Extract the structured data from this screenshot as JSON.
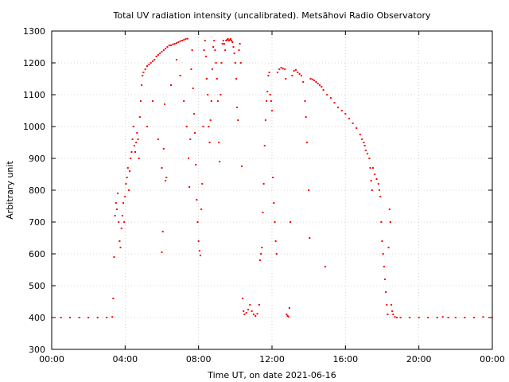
{
  "chart_data": {
    "type": "scatter",
    "title": "Total UV radiation intensity (uncalibrated). Metsähovi Radio Observatory",
    "xlabel": "Time UT, on date 2021-06-16",
    "ylabel": "Arbitrary unit",
    "xlim": [
      "00:00",
      "24:00"
    ],
    "ylim": [
      300,
      1300
    ],
    "grid": true,
    "legend": "none",
    "marker_color": "#ff0000",
    "x_ticks": [
      "00:00",
      "04:00",
      "08:00",
      "12:00",
      "16:00",
      "20:00",
      "00:00"
    ],
    "y_ticks": [
      300,
      400,
      500,
      600,
      700,
      800,
      900,
      1000,
      1100,
      1200,
      1300
    ],
    "x_unit": "hours UT",
    "series": [
      {
        "values": [
          [
            0.0,
            400
          ],
          [
            0.5,
            400
          ],
          [
            1.0,
            400
          ],
          [
            1.5,
            400
          ],
          [
            2.0,
            400
          ],
          [
            2.5,
            400
          ],
          [
            3.0,
            400
          ],
          [
            3.3,
            402
          ],
          [
            3.35,
            460
          ],
          [
            3.4,
            590
          ],
          [
            3.45,
            720
          ],
          [
            3.5,
            760
          ],
          [
            3.55,
            740
          ],
          [
            3.6,
            790
          ],
          [
            3.65,
            700
          ],
          [
            3.7,
            640
          ],
          [
            3.75,
            620
          ],
          [
            3.8,
            680
          ],
          [
            3.85,
            720
          ],
          [
            3.9,
            760
          ],
          [
            3.95,
            700
          ],
          [
            4.0,
            780
          ],
          [
            4.05,
            820
          ],
          [
            4.1,
            840
          ],
          [
            4.15,
            870
          ],
          [
            4.2,
            800
          ],
          [
            4.25,
            860
          ],
          [
            4.3,
            900
          ],
          [
            4.35,
            920
          ],
          [
            4.4,
            960
          ],
          [
            4.45,
            1000
          ],
          [
            4.5,
            940
          ],
          [
            4.55,
            920
          ],
          [
            4.6,
            950
          ],
          [
            4.65,
            980
          ],
          [
            4.7,
            960
          ],
          [
            4.75,
            900
          ],
          [
            4.8,
            1030
          ],
          [
            4.85,
            1080
          ],
          [
            4.9,
            1130
          ],
          [
            4.95,
            1160
          ],
          [
            5.0,
            1170
          ],
          [
            5.1,
            1180
          ],
          [
            5.2,
            1190
          ],
          [
            5.3,
            1195
          ],
          [
            5.4,
            1200
          ],
          [
            5.5,
            1205
          ],
          [
            5.6,
            1210
          ],
          [
            5.7,
            1220
          ],
          [
            5.8,
            1225
          ],
          [
            5.9,
            1230
          ],
          [
            6.0,
            1235
          ],
          [
            6.1,
            1240
          ],
          [
            6.2,
            1245
          ],
          [
            6.3,
            1250
          ],
          [
            6.4,
            1255
          ],
          [
            6.5,
            1255
          ],
          [
            6.6,
            1258
          ],
          [
            6.7,
            1260
          ],
          [
            6.8,
            1262
          ],
          [
            6.9,
            1265
          ],
          [
            7.0,
            1268
          ],
          [
            7.1,
            1270
          ],
          [
            7.2,
            1272
          ],
          [
            7.3,
            1275
          ],
          [
            7.4,
            1276
          ],
          [
            5.2,
            1000
          ],
          [
            5.5,
            1080
          ],
          [
            5.8,
            960
          ],
          [
            6.0,
            870
          ],
          [
            6.1,
            930
          ],
          [
            6.15,
            1070
          ],
          [
            6.05,
            670
          ],
          [
            6.0,
            605
          ],
          [
            6.2,
            830
          ],
          [
            6.25,
            840
          ],
          [
            6.5,
            1130
          ],
          [
            6.8,
            1210
          ],
          [
            7.0,
            1160
          ],
          [
            7.2,
            1080
          ],
          [
            7.35,
            1000
          ],
          [
            7.45,
            900
          ],
          [
            7.5,
            810
          ],
          [
            7.55,
            960
          ],
          [
            7.6,
            1180
          ],
          [
            7.65,
            1240
          ],
          [
            7.7,
            1120
          ],
          [
            7.75,
            1040
          ],
          [
            7.8,
            980
          ],
          [
            7.85,
            880
          ],
          [
            7.9,
            770
          ],
          [
            7.95,
            700
          ],
          [
            8.0,
            640
          ],
          [
            8.05,
            610
          ],
          [
            8.1,
            595
          ],
          [
            8.15,
            740
          ],
          [
            8.2,
            820
          ],
          [
            8.25,
            1000
          ],
          [
            8.3,
            1240
          ],
          [
            8.35,
            1270
          ],
          [
            8.4,
            1220
          ],
          [
            8.45,
            1150
          ],
          [
            8.5,
            1100
          ],
          [
            8.55,
            1000
          ],
          [
            8.6,
            950
          ],
          [
            8.65,
            1020
          ],
          [
            8.7,
            1080
          ],
          [
            8.75,
            1180
          ],
          [
            8.8,
            1250
          ],
          [
            8.85,
            1270
          ],
          [
            8.9,
            1240
          ],
          [
            8.95,
            1200
          ],
          [
            9.0,
            1150
          ],
          [
            9.05,
            1080
          ],
          [
            9.1,
            950
          ],
          [
            9.15,
            890
          ],
          [
            9.2,
            1100
          ],
          [
            9.25,
            1200
          ],
          [
            9.3,
            1260
          ],
          [
            9.35,
            1270
          ],
          [
            9.4,
            1260
          ],
          [
            9.45,
            1240
          ],
          [
            9.5,
            1270
          ],
          [
            9.55,
            1272
          ],
          [
            9.6,
            1275
          ],
          [
            9.65,
            1270
          ],
          [
            9.7,
            1272
          ],
          [
            9.75,
            1275
          ],
          [
            9.8,
            1270
          ],
          [
            9.85,
            1265
          ],
          [
            9.9,
            1250
          ],
          [
            9.95,
            1230
          ],
          [
            10.0,
            1200
          ],
          [
            10.05,
            1150
          ],
          [
            10.1,
            1060
          ],
          [
            10.15,
            1020
          ],
          [
            10.2,
            1240
          ],
          [
            10.25,
            1260
          ],
          [
            10.3,
            1200
          ],
          [
            10.35,
            875
          ],
          [
            10.4,
            460
          ],
          [
            10.45,
            420
          ],
          [
            10.5,
            410
          ],
          [
            10.6,
            415
          ],
          [
            10.7,
            425
          ],
          [
            10.8,
            440
          ],
          [
            10.9,
            420
          ],
          [
            11.0,
            410
          ],
          [
            11.1,
            405
          ],
          [
            11.2,
            412
          ],
          [
            11.3,
            440
          ],
          [
            11.35,
            580
          ],
          [
            11.4,
            600
          ],
          [
            11.45,
            620
          ],
          [
            11.5,
            730
          ],
          [
            11.55,
            820
          ],
          [
            11.6,
            940
          ],
          [
            11.65,
            1020
          ],
          [
            11.7,
            1080
          ],
          [
            11.75,
            1110
          ],
          [
            11.8,
            1160
          ],
          [
            11.85,
            1170
          ],
          [
            11.9,
            1100
          ],
          [
            11.95,
            1080
          ],
          [
            12.0,
            1050
          ],
          [
            12.05,
            840
          ],
          [
            12.1,
            760
          ],
          [
            12.15,
            700
          ],
          [
            12.2,
            640
          ],
          [
            12.25,
            600
          ],
          [
            12.3,
            1170
          ],
          [
            12.4,
            1180
          ],
          [
            12.5,
            1185
          ],
          [
            12.6,
            1182
          ],
          [
            12.7,
            1180
          ],
          [
            12.75,
            1150
          ],
          [
            12.8,
            410
          ],
          [
            12.85,
            405
          ],
          [
            12.9,
            402
          ],
          [
            12.95,
            430
          ],
          [
            13.0,
            700
          ],
          [
            13.1,
            1160
          ],
          [
            13.2,
            1175
          ],
          [
            13.3,
            1178
          ],
          [
            13.4,
            1170
          ],
          [
            13.5,
            1165
          ],
          [
            13.6,
            1160
          ],
          [
            13.7,
            1140
          ],
          [
            13.8,
            1080
          ],
          [
            13.85,
            1030
          ],
          [
            13.9,
            950
          ],
          [
            14.0,
            800
          ],
          [
            14.05,
            650
          ],
          [
            14.1,
            1150
          ],
          [
            14.2,
            1148
          ],
          [
            14.3,
            1145
          ],
          [
            14.4,
            1140
          ],
          [
            14.5,
            1135
          ],
          [
            14.6,
            1130
          ],
          [
            14.7,
            1125
          ],
          [
            14.8,
            1115
          ],
          [
            14.9,
            560
          ],
          [
            15.0,
            1100
          ],
          [
            15.2,
            1090
          ],
          [
            15.4,
            1075
          ],
          [
            15.6,
            1060
          ],
          [
            15.8,
            1050
          ],
          [
            16.0,
            1040
          ],
          [
            16.2,
            1025
          ],
          [
            16.4,
            1010
          ],
          [
            16.6,
            995
          ],
          [
            16.8,
            975
          ],
          [
            16.9,
            960
          ],
          [
            17.0,
            950
          ],
          [
            17.05,
            940
          ],
          [
            17.1,
            925
          ],
          [
            17.2,
            915
          ],
          [
            17.3,
            900
          ],
          [
            17.35,
            870
          ],
          [
            17.4,
            830
          ],
          [
            17.45,
            800
          ],
          [
            17.5,
            870
          ],
          [
            17.6,
            850
          ],
          [
            17.7,
            835
          ],
          [
            17.8,
            820
          ],
          [
            17.85,
            800
          ],
          [
            17.9,
            780
          ],
          [
            17.95,
            700
          ],
          [
            18.0,
            640
          ],
          [
            18.05,
            600
          ],
          [
            18.1,
            560
          ],
          [
            18.15,
            520
          ],
          [
            18.2,
            480
          ],
          [
            18.25,
            440
          ],
          [
            18.3,
            410
          ],
          [
            18.35,
            620
          ],
          [
            18.4,
            740
          ],
          [
            18.45,
            700
          ],
          [
            18.5,
            440
          ],
          [
            18.55,
            420
          ],
          [
            18.6,
            410
          ],
          [
            18.7,
            402
          ],
          [
            18.8,
            400
          ],
          [
            19.0,
            400
          ],
          [
            19.5,
            400
          ],
          [
            20.0,
            400
          ],
          [
            20.5,
            400
          ],
          [
            21.0,
            400
          ],
          [
            21.3,
            402
          ],
          [
            21.6,
            400
          ],
          [
            22.0,
            400
          ],
          [
            22.5,
            400
          ],
          [
            23.0,
            400
          ],
          [
            23.5,
            402
          ],
          [
            24.0,
            400
          ]
        ]
      }
    ]
  }
}
